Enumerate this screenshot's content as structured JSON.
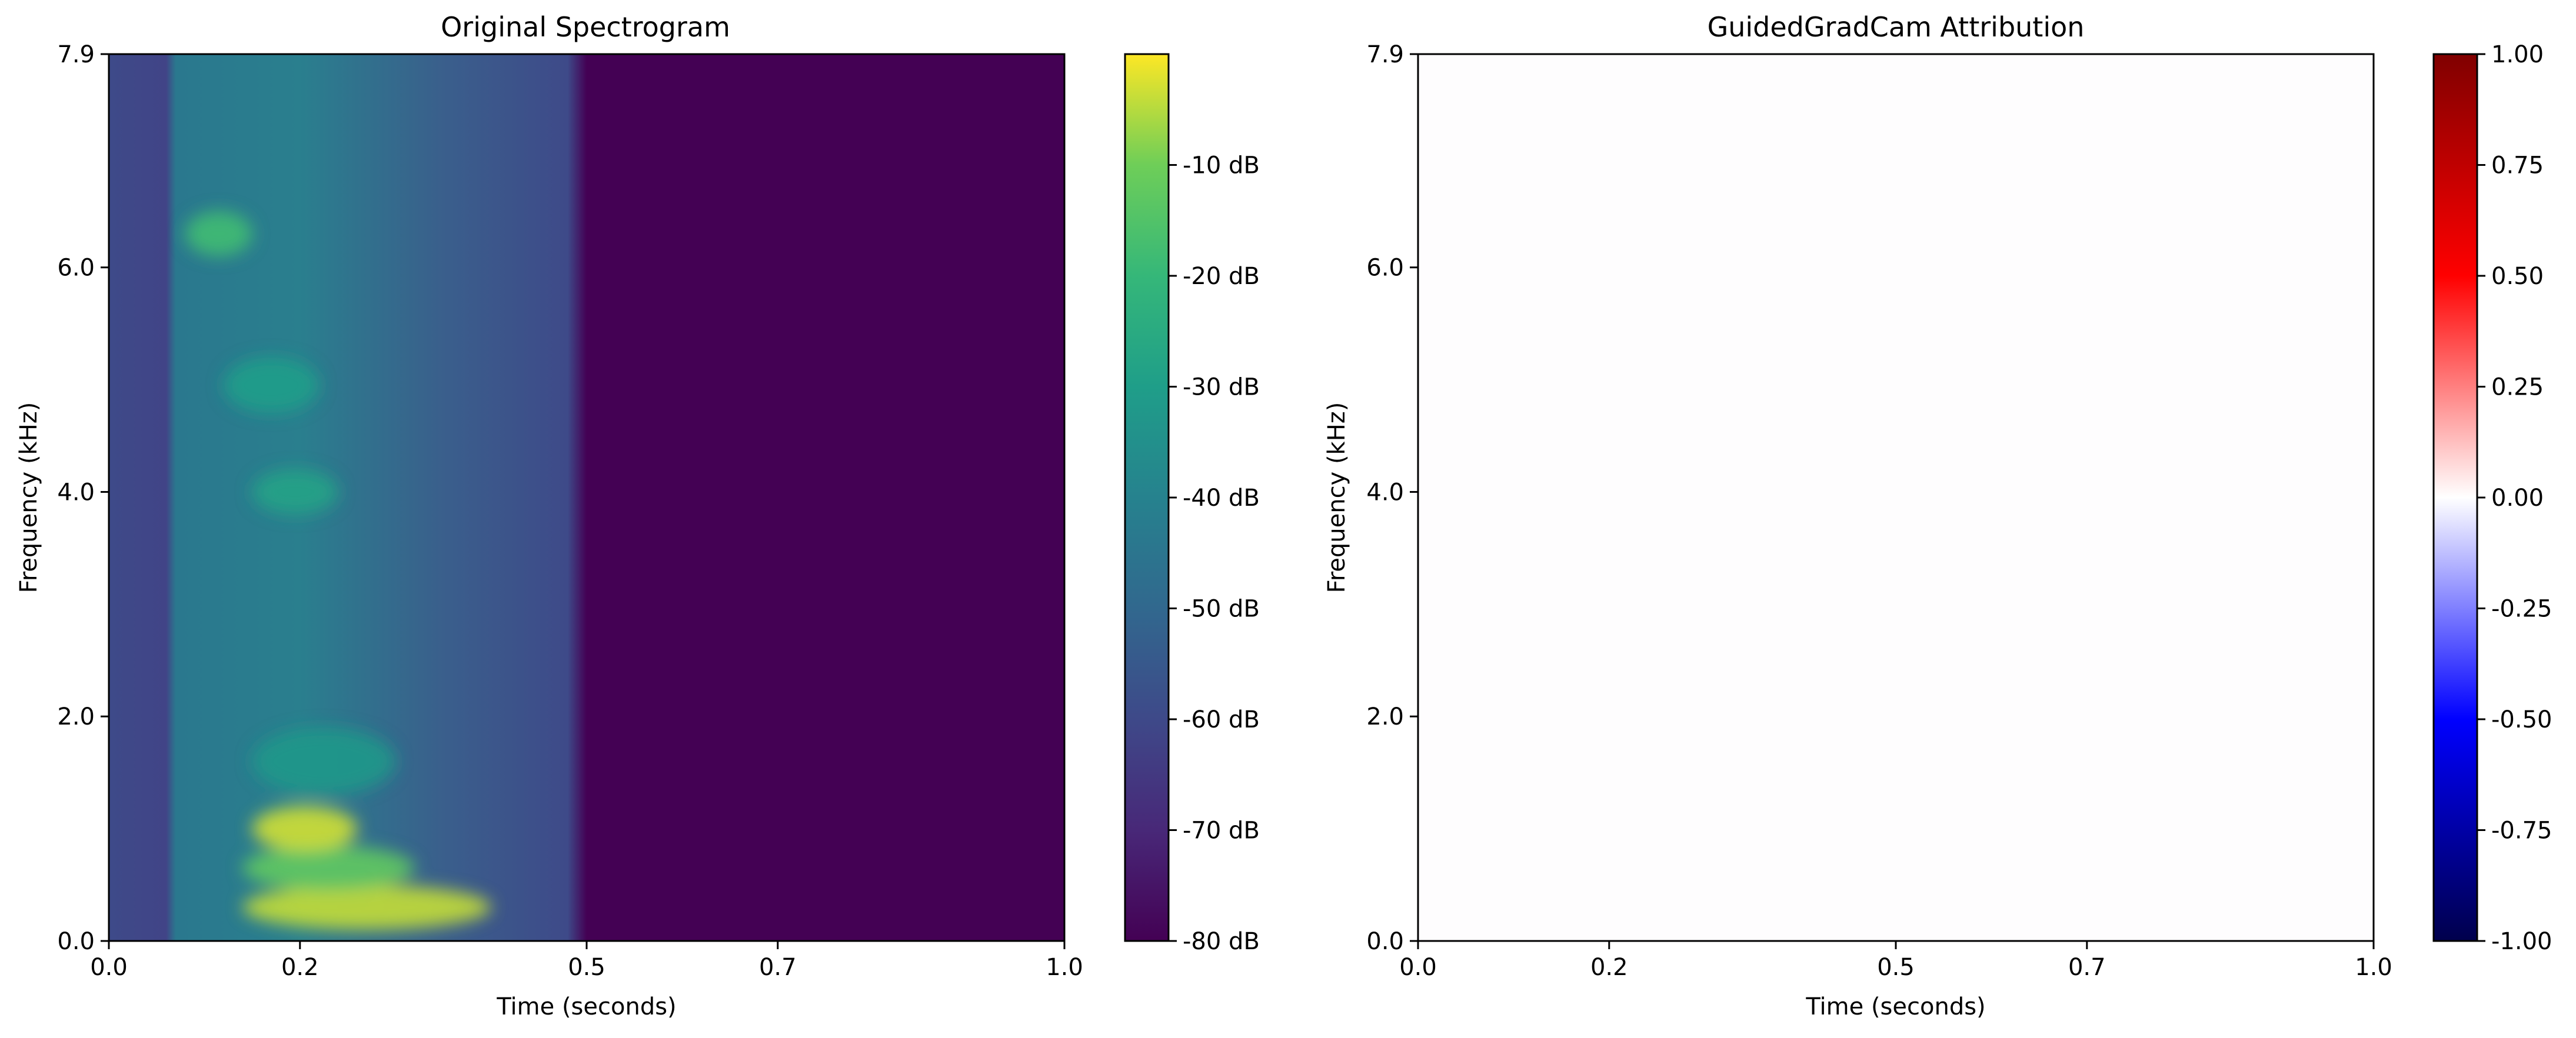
{
  "chart_data": [
    {
      "type": "heatmap",
      "title": "Original Spectrogram",
      "xlabel": "Time (seconds)",
      "ylabel": "Frequency (kHz)",
      "xlim": [
        0.0,
        1.0
      ],
      "ylim": [
        0.0,
        7.9
      ],
      "x_ticks": [
        0.0,
        0.2,
        0.5,
        0.7,
        1.0
      ],
      "x_tick_labels": [
        "0.0",
        "0.2",
        "0.5",
        "0.7",
        "1.0"
      ],
      "y_ticks": [
        0.0,
        2.0,
        4.0,
        6.0,
        7.9
      ],
      "y_tick_labels": [
        "0.0",
        "2.0",
        "4.0",
        "6.0",
        "7.9"
      ],
      "colormap": "viridis",
      "colorbar": {
        "vmin": -80,
        "vmax": 0,
        "ticks": [
          -10,
          -20,
          -30,
          -40,
          -50,
          -60,
          -70,
          -80
        ],
        "tick_labels": [
          "-10 dB",
          "-20 dB",
          "-30 dB",
          "-40 dB",
          "-50 dB",
          "-60 dB",
          "-70 dB",
          "-80 dB"
        ]
      },
      "signal_end_seconds": 0.5,
      "floor_db": -80,
      "regions": [
        {
          "t": [
            0.14,
            0.4
          ],
          "f": [
            0.1,
            0.5
          ],
          "db": -4
        },
        {
          "t": [
            0.14,
            0.32
          ],
          "f": [
            0.45,
            0.85
          ],
          "db": -12
        },
        {
          "t": [
            0.15,
            0.26
          ],
          "f": [
            0.8,
            1.2
          ],
          "db": -3
        },
        {
          "t": [
            0.15,
            0.3
          ],
          "f": [
            1.3,
            1.9
          ],
          "db": -32
        },
        {
          "t": [
            0.08,
            0.15
          ],
          "f": [
            6.1,
            6.5
          ],
          "db": -18
        },
        {
          "t": [
            0.12,
            0.22
          ],
          "f": [
            4.7,
            5.2
          ],
          "db": -30
        },
        {
          "t": [
            0.15,
            0.24
          ],
          "f": [
            3.8,
            4.2
          ],
          "db": -28
        }
      ]
    },
    {
      "type": "heatmap",
      "title": "GuidedGradCam Attribution",
      "xlabel": "Time (seconds)",
      "ylabel": "Frequency (kHz)",
      "xlim": [
        0.0,
        1.0
      ],
      "ylim": [
        0.0,
        7.9
      ],
      "x_ticks": [
        0.0,
        0.2,
        0.5,
        0.7,
        1.0
      ],
      "x_tick_labels": [
        "0.0",
        "0.2",
        "0.5",
        "0.7",
        "1.0"
      ],
      "y_ticks": [
        0.0,
        2.0,
        4.0,
        6.0,
        7.9
      ],
      "y_tick_labels": [
        "0.0",
        "2.0",
        "4.0",
        "6.0",
        "7.9"
      ],
      "colormap": "seismic",
      "colorbar": {
        "vmin": -1.0,
        "vmax": 1.0,
        "ticks": [
          1.0,
          0.75,
          0.5,
          0.25,
          0.0,
          -0.25,
          -0.5,
          -0.75,
          -1.0
        ],
        "tick_labels": [
          "1.00",
          "0.75",
          "0.50",
          "0.25",
          "0.00",
          "-0.25",
          "-0.50",
          "-0.75",
          "-1.00"
        ]
      },
      "attribution_value": 0.0
    }
  ]
}
